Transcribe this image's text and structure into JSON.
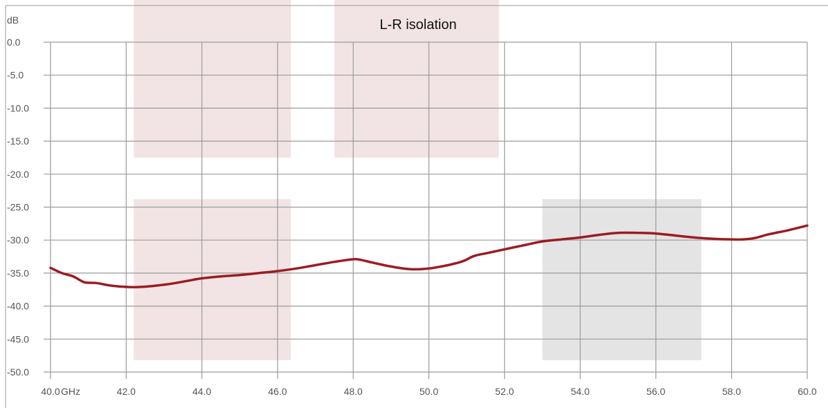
{
  "chart_data": {
    "type": "line",
    "title": "L-R isolation",
    "xlabel": "GHz",
    "ylabel": "dB",
    "xlim": [
      40,
      60
    ],
    "ylim": [
      -50,
      0
    ],
    "grid": true,
    "x_ticks": [
      "40.0",
      "42.0",
      "44.0",
      "46.0",
      "48.0",
      "50.0",
      "52.0",
      "54.0",
      "56.0",
      "58.0",
      "60.0"
    ],
    "y_ticks": [
      "0.0",
      "-5.0",
      "-10.0",
      "-15.0",
      "-20.0",
      "-25.0",
      "-30.0",
      "-35.0",
      "-40.0",
      "-45.0",
      "-50.0"
    ],
    "series": [
      {
        "color": "#9b1c22",
        "x": [
          40.0,
          40.3,
          40.6,
          40.9,
          41.2,
          41.6,
          42.0,
          42.4,
          42.8,
          43.2,
          43.6,
          44.0,
          44.5,
          45.0,
          45.5,
          46.0,
          46.5,
          47.0,
          47.5,
          48.0,
          48.2,
          48.5,
          49.0,
          49.5,
          50.0,
          50.5,
          50.9,
          51.2,
          51.6,
          52.0,
          52.5,
          53.0,
          53.5,
          54.0,
          54.5,
          55.0,
          55.5,
          56.0,
          56.5,
          57.0,
          57.5,
          58.0,
          58.3,
          58.6,
          59.0,
          59.5,
          60.0
        ],
        "y": [
          -34.2,
          -35.0,
          -35.5,
          -36.4,
          -36.5,
          -36.9,
          -37.1,
          -37.1,
          -36.9,
          -36.6,
          -36.2,
          -35.8,
          -35.5,
          -35.3,
          -35.0,
          -34.7,
          -34.3,
          -33.8,
          -33.3,
          -32.9,
          -33.0,
          -33.4,
          -34.0,
          -34.4,
          -34.3,
          -33.8,
          -33.2,
          -32.4,
          -31.9,
          -31.4,
          -30.8,
          -30.2,
          -29.9,
          -29.6,
          -29.2,
          -28.9,
          -28.9,
          -29.0,
          -29.3,
          -29.6,
          -29.8,
          -29.9,
          -29.9,
          -29.7,
          -29.1,
          -28.5,
          -27.8
        ]
      }
    ],
    "shaded_regions": [
      {
        "x": [
          42.2,
          46.35
        ],
        "y": [
          -17.5,
          6.8
        ],
        "color": "#f2e4e4"
      },
      {
        "x": [
          47.5,
          51.85
        ],
        "y": [
          -17.5,
          6.8
        ],
        "color": "#f2e4e4"
      },
      {
        "x": [
          42.2,
          46.35
        ],
        "y": [
          -48.2,
          -23.8
        ],
        "color": "#f2e4e4"
      },
      {
        "x": [
          53.0,
          57.2
        ],
        "y": [
          -48.2,
          -23.8
        ],
        "color": "#e4e4e4"
      }
    ]
  }
}
